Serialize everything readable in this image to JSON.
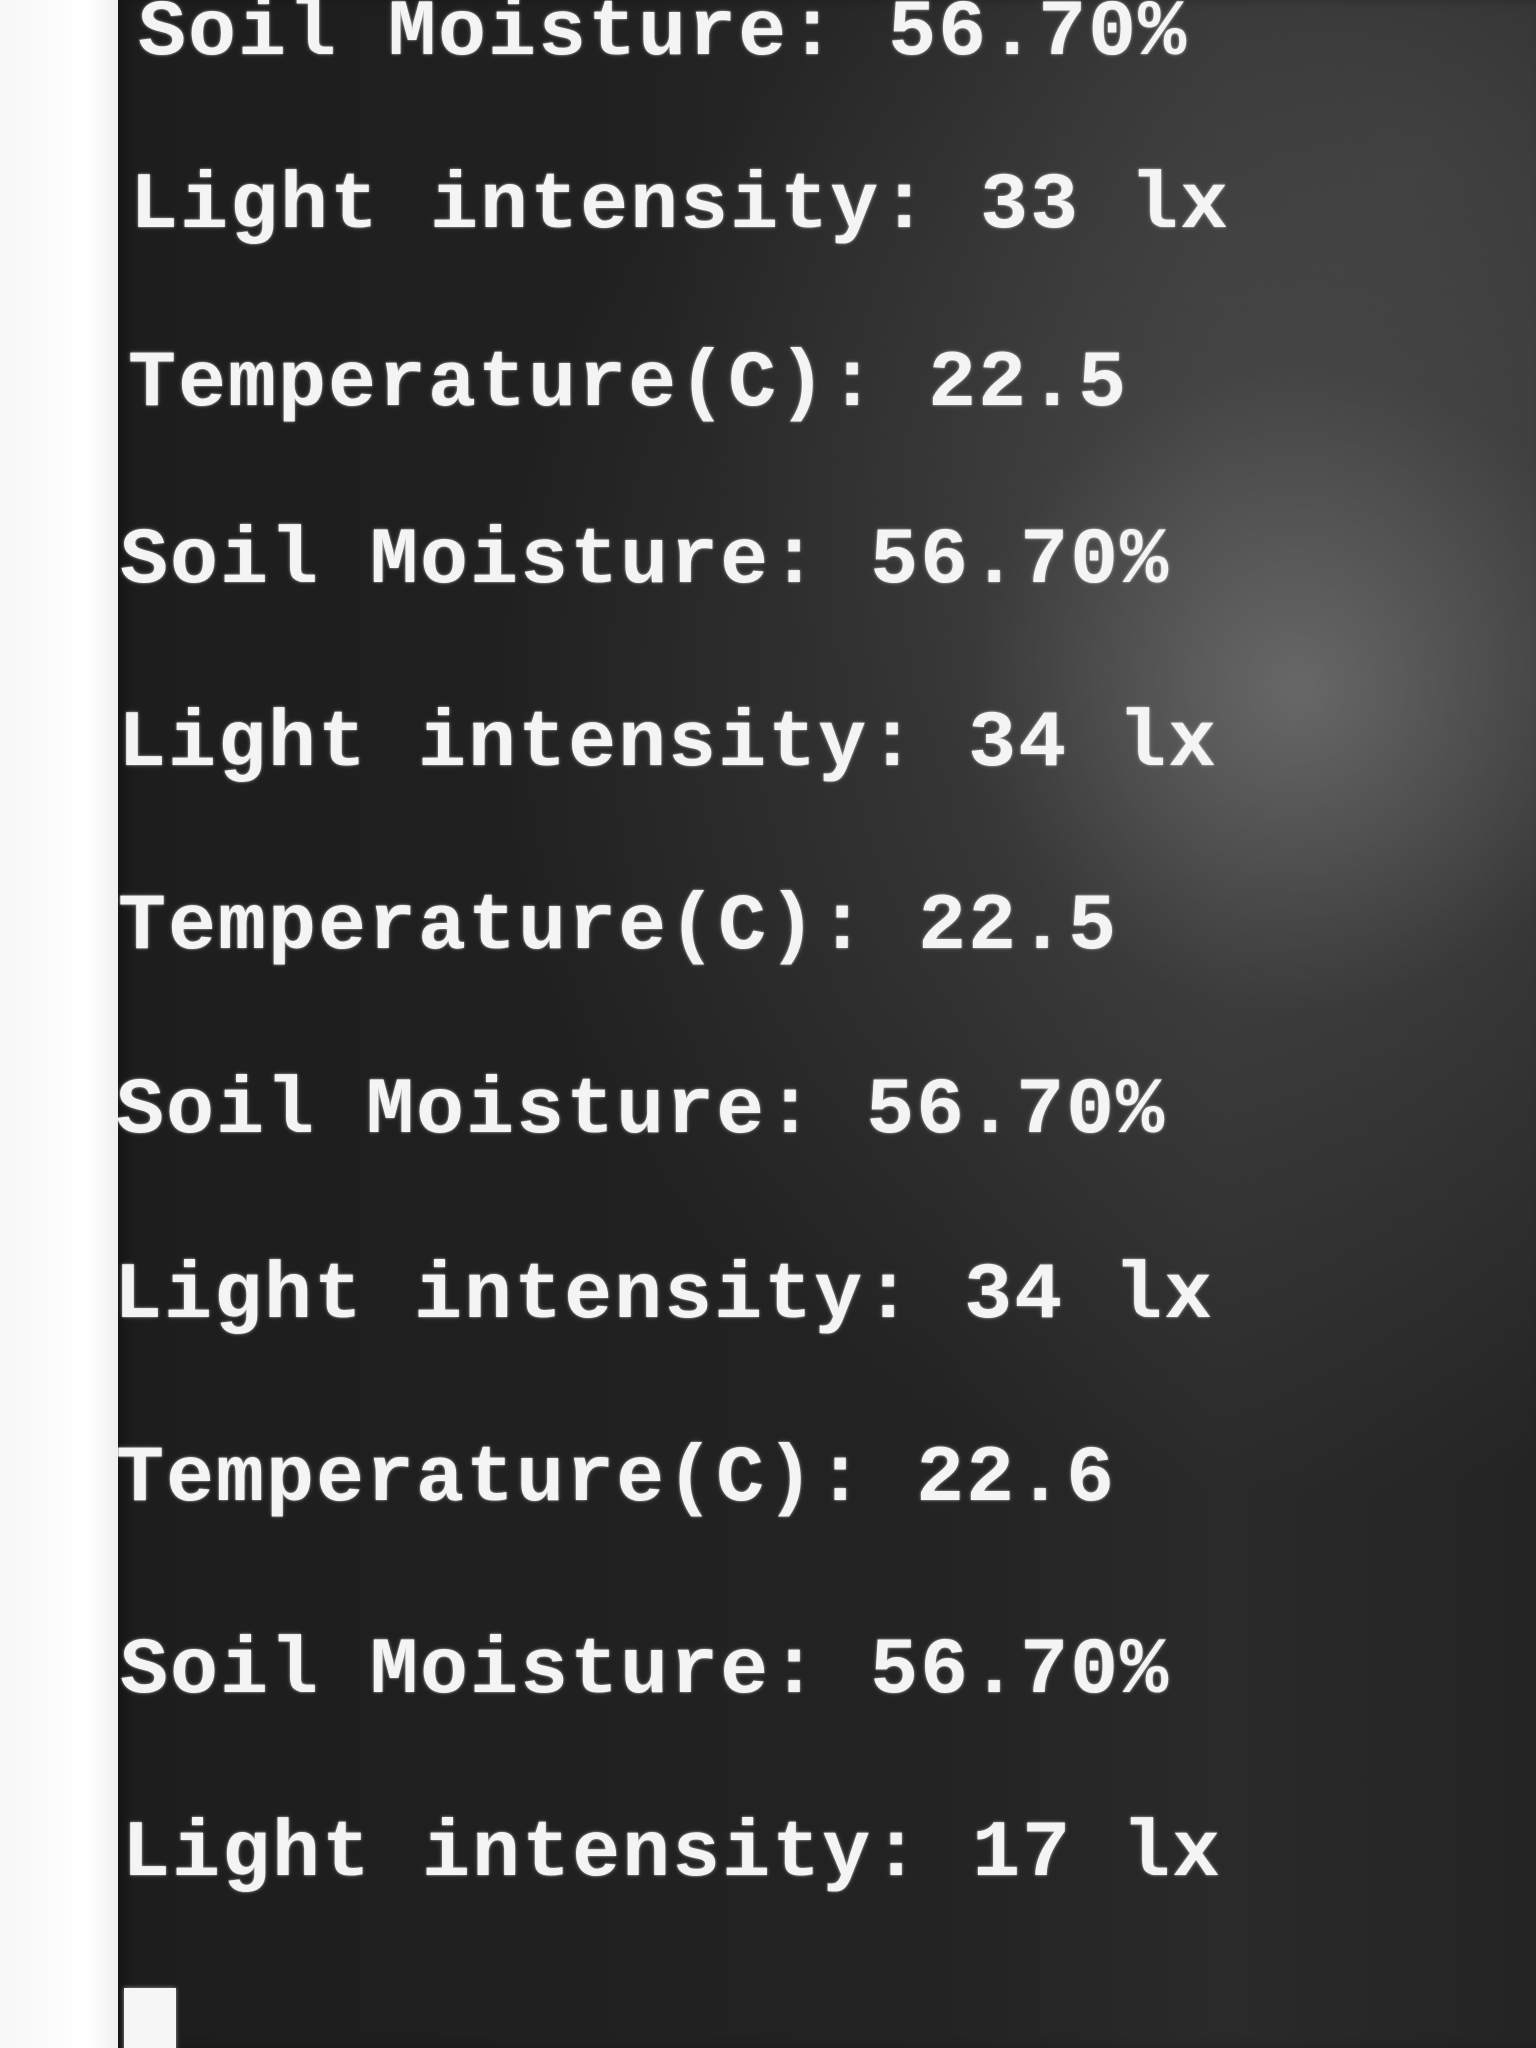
{
  "terminal": {
    "lines": [
      "Soil Moisture: 56.70%",
      "Light intensity: 33 lx",
      "Temperature(C): 22.5",
      "Soil Moisture: 56.70%",
      "Light intensity: 34 lx",
      "Temperature(C): 22.5",
      "Soil Moisture: 56.70%",
      "Light intensity: 34 lx",
      "Temperature(C): 22.6",
      "Soil Moisture: 56.70%",
      "Light intensity: 17 lx"
    ],
    "background_color": "#1f1f1f",
    "text_color": "#f4f4f4"
  }
}
